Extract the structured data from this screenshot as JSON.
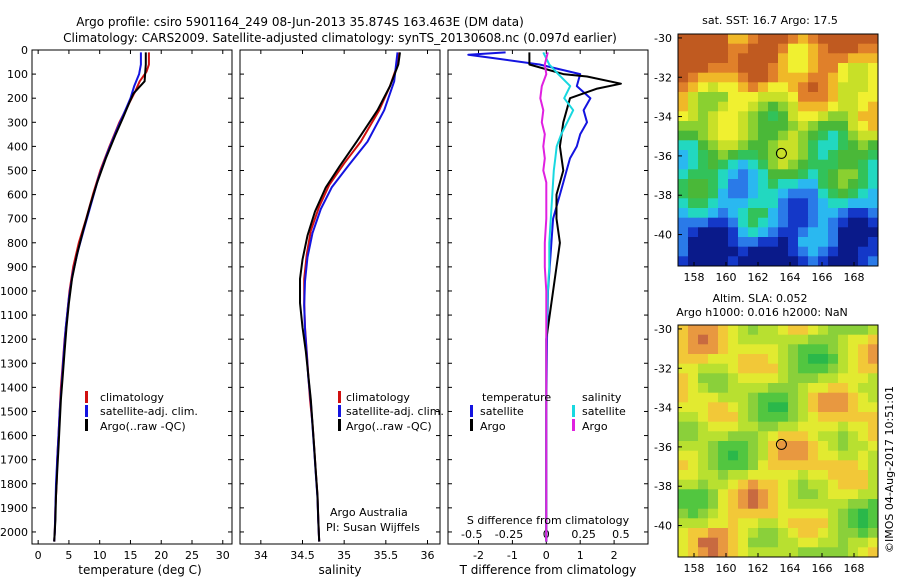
{
  "header": {
    "line1": "Argo profile: csiro 5901164_249 08-Jun-2013 35.874S 163.463E (DM data)",
    "line2": "Climatology: CARS2009. Satellite-adjusted climatology: synTS_20130608.nc (0.097d earlier)"
  },
  "colors": {
    "climatology": "#d01010",
    "satellite": "#1414e0",
    "argo": "#000000",
    "s_satellite": "#18d8e0",
    "s_argo": "#e020e0"
  },
  "chart_data": [
    {
      "type": "line",
      "id": "temperature",
      "xlabel": "temperature (deg C)",
      "xlim": [
        -1,
        31.5
      ],
      "ylim": [
        2050,
        0
      ],
      "xticks": [
        "0",
        "5",
        "10",
        "15",
        "20",
        "25",
        "30"
      ],
      "yticks": [
        "0",
        "100",
        "200",
        "300",
        "400",
        "500",
        "600",
        "700",
        "800",
        "900",
        "1000",
        "1100",
        "1200",
        "1300",
        "1400",
        "1500",
        "1600",
        "1700",
        "1800",
        "1900",
        "2000"
      ],
      "legend": [
        "climatology",
        "satellite-adj. clim.",
        "Argo(..raw -QC)"
      ],
      "series": [
        {
          "name": "climatology",
          "points": [
            [
              18.0,
              10
            ],
            [
              18.0,
              60
            ],
            [
              17.6,
              90
            ],
            [
              16.5,
              130
            ],
            [
              15.8,
              170
            ],
            [
              14.6,
              230
            ],
            [
              13.2,
              300
            ],
            [
              11.6,
              400
            ],
            [
              10.1,
              500
            ],
            [
              8.9,
              600
            ],
            [
              7.8,
              700
            ],
            [
              6.6,
              800
            ],
            [
              5.7,
              900
            ],
            [
              5.1,
              1000
            ],
            [
              4.7,
              1100
            ],
            [
              4.3,
              1200
            ],
            [
              4.0,
              1300
            ],
            [
              3.7,
              1400
            ],
            [
              3.5,
              1500
            ],
            [
              3.3,
              1600
            ],
            [
              3.1,
              1700
            ],
            [
              3.0,
              1800
            ],
            [
              2.8,
              1900
            ],
            [
              2.7,
              2000
            ],
            [
              2.6,
              2040
            ]
          ]
        },
        {
          "name": "satellite-adj. clim.",
          "points": [
            [
              16.7,
              10
            ],
            [
              16.7,
              60
            ],
            [
              16.4,
              100
            ],
            [
              15.6,
              150
            ],
            [
              15.0,
              200
            ],
            [
              14.0,
              260
            ],
            [
              12.8,
              330
            ],
            [
              11.2,
              430
            ],
            [
              9.8,
              530
            ],
            [
              8.7,
              630
            ],
            [
              7.6,
              730
            ],
            [
              6.5,
              830
            ],
            [
              5.6,
              930
            ],
            [
              5.0,
              1030
            ],
            [
              4.5,
              1150
            ],
            [
              4.1,
              1280
            ],
            [
              3.8,
              1400
            ],
            [
              3.5,
              1500
            ],
            [
              3.3,
              1600
            ],
            [
              3.1,
              1700
            ],
            [
              2.9,
              1800
            ],
            [
              2.8,
              1900
            ],
            [
              2.7,
              2000
            ],
            [
              2.6,
              2040
            ]
          ]
        },
        {
          "name": "Argo(..raw -QC)",
          "points": [
            [
              17.5,
              10
            ],
            [
              17.5,
              60
            ],
            [
              17.3,
              130
            ],
            [
              15.5,
              180
            ],
            [
              14.8,
              220
            ],
            [
              13.8,
              280
            ],
            [
              12.6,
              350
            ],
            [
              11.0,
              450
            ],
            [
              9.6,
              550
            ],
            [
              8.4,
              650
            ],
            [
              7.3,
              750
            ],
            [
              6.3,
              850
            ],
            [
              5.5,
              950
            ],
            [
              5.0,
              1050
            ],
            [
              4.6,
              1150
            ],
            [
              4.3,
              1250
            ],
            [
              4.0,
              1350
            ],
            [
              3.7,
              1450
            ],
            [
              3.5,
              1550
            ],
            [
              3.3,
              1650
            ],
            [
              3.1,
              1750
            ],
            [
              2.9,
              1850
            ],
            [
              2.8,
              1950
            ],
            [
              2.6,
              2040
            ]
          ]
        }
      ]
    },
    {
      "type": "line",
      "id": "salinity",
      "xlabel": "salinity",
      "xlim": [
        33.75,
        36.15
      ],
      "ylim": [
        2050,
        0
      ],
      "xticks": [
        "34",
        "34.5",
        "35",
        "35.5",
        "36"
      ],
      "legend": [
        "climatology",
        "satellite-adj. clim.",
        "Argo(..raw -QC)"
      ],
      "annotations": [
        "Argo Australia",
        "PI: Susan Wijffels"
      ],
      "series": [
        {
          "name": "climatology",
          "points": [
            [
              35.66,
              10
            ],
            [
              35.62,
              80
            ],
            [
              35.55,
              150
            ],
            [
              35.42,
              250
            ],
            [
              35.2,
              380
            ],
            [
              35.0,
              470
            ],
            [
              34.82,
              560
            ],
            [
              34.7,
              650
            ],
            [
              34.6,
              750
            ],
            [
              34.55,
              850
            ],
            [
              34.52,
              950
            ],
            [
              34.52,
              1050
            ],
            [
              34.53,
              1150
            ],
            [
              34.55,
              1250
            ],
            [
              34.57,
              1350
            ],
            [
              34.59,
              1450
            ],
            [
              34.62,
              1550
            ],
            [
              34.64,
              1650
            ],
            [
              34.66,
              1750
            ],
            [
              34.68,
              1850
            ],
            [
              34.69,
              1950
            ],
            [
              34.7,
              2040
            ]
          ]
        },
        {
          "name": "satellite-adj. clim.",
          "points": [
            [
              35.64,
              10
            ],
            [
              35.62,
              70
            ],
            [
              35.6,
              130
            ],
            [
              35.48,
              250
            ],
            [
              35.28,
              380
            ],
            [
              35.05,
              480
            ],
            [
              34.85,
              570
            ],
            [
              34.72,
              660
            ],
            [
              34.62,
              760
            ],
            [
              34.56,
              860
            ],
            [
              34.53,
              960
            ],
            [
              34.52,
              1060
            ],
            [
              34.53,
              1160
            ],
            [
              34.55,
              1260
            ],
            [
              34.57,
              1360
            ],
            [
              34.6,
              1460
            ],
            [
              34.62,
              1560
            ],
            [
              34.64,
              1660
            ],
            [
              34.66,
              1760
            ],
            [
              34.68,
              1860
            ],
            [
              34.69,
              1960
            ],
            [
              34.7,
              2040
            ]
          ]
        },
        {
          "name": "Argo(..raw -QC)",
          "points": [
            [
              35.67,
              10
            ],
            [
              35.65,
              60
            ],
            [
              35.55,
              150
            ],
            [
              35.4,
              250
            ],
            [
              35.15,
              380
            ],
            [
              34.95,
              480
            ],
            [
              34.78,
              570
            ],
            [
              34.65,
              670
            ],
            [
              34.56,
              770
            ],
            [
              34.5,
              870
            ],
            [
              34.47,
              950
            ],
            [
              34.47,
              1050
            ],
            [
              34.5,
              1150
            ],
            [
              34.54,
              1250
            ],
            [
              34.57,
              1350
            ],
            [
              34.6,
              1450
            ],
            [
              34.62,
              1550
            ],
            [
              34.64,
              1650
            ],
            [
              34.66,
              1750
            ],
            [
              34.68,
              1850
            ],
            [
              34.69,
              1950
            ],
            [
              34.7,
              2040
            ]
          ]
        }
      ]
    },
    {
      "type": "line",
      "id": "difference",
      "xlabel": "T difference from climatology",
      "xlabel2": "S difference from climatology",
      "xlim": [
        -2.9,
        3.0
      ],
      "ylim": [
        2050,
        0
      ],
      "xticks": [
        "-2",
        "-1",
        "0",
        "1",
        "2"
      ],
      "sticks": [
        "-0.5",
        "-0.25",
        "0",
        "0.25",
        "0.5"
      ],
      "legend_temperature_title": "temperature",
      "legend_salinity_title": "salinity",
      "legend": [
        "satellite",
        "Argo",
        "satellite",
        "Argo"
      ],
      "series": [
        {
          "name": "satellite",
          "points": [
            [
              -1.2,
              10
            ],
            [
              -2.3,
              20
            ],
            [
              -1.5,
              35
            ],
            [
              -0.2,
              60
            ],
            [
              1.0,
              100
            ],
            [
              0.9,
              150
            ],
            [
              1.3,
              200
            ],
            [
              1.1,
              250
            ],
            [
              1.2,
              300
            ],
            [
              1.0,
              350
            ],
            [
              0.9,
              400
            ],
            [
              0.7,
              450
            ],
            [
              0.6,
              500
            ],
            [
              0.5,
              550
            ],
            [
              0.4,
              600
            ],
            [
              0.3,
              650
            ],
            [
              0.2,
              700
            ],
            [
              0.15,
              800
            ],
            [
              0.1,
              900
            ],
            [
              0.05,
              1000
            ],
            [
              0.02,
              1200
            ],
            [
              0.0,
              1500
            ],
            [
              0.0,
              2040
            ]
          ]
        },
        {
          "name": "Argo",
          "points": [
            [
              -0.5,
              10
            ],
            [
              -0.5,
              60
            ],
            [
              0.5,
              100
            ],
            [
              1.2,
              110
            ],
            [
              2.2,
              140
            ],
            [
              1.5,
              160
            ],
            [
              0.7,
              200
            ],
            [
              0.5,
              300
            ],
            [
              0.4,
              400
            ],
            [
              0.5,
              500
            ],
            [
              0.3,
              600
            ],
            [
              0.3,
              700
            ],
            [
              0.4,
              800
            ],
            [
              0.3,
              900
            ],
            [
              0.2,
              1000
            ],
            [
              0.0,
              1200
            ],
            [
              0.0,
              1500
            ],
            [
              0.0,
              2040
            ]
          ]
        },
        {
          "name": "S satellite",
          "points": [
            [
              -0.02,
              10
            ],
            [
              0.02,
              60
            ],
            [
              0.08,
              100
            ],
            [
              0.16,
              150
            ],
            [
              0.12,
              200
            ],
            [
              0.18,
              250
            ],
            [
              0.14,
              300
            ],
            [
              0.1,
              350
            ],
            [
              0.07,
              400
            ],
            [
              0.06,
              450
            ],
            [
              0.05,
              500
            ],
            [
              0.04,
              600
            ],
            [
              0.03,
              700
            ],
            [
              0.02,
              800
            ],
            [
              0.02,
              900
            ],
            [
              0.01,
              1000
            ],
            [
              0.0,
              1200
            ],
            [
              0.0,
              1500
            ],
            [
              0.0,
              2040
            ]
          ]
        },
        {
          "name": "S Argo",
          "points": [
            [
              0.01,
              10
            ],
            [
              -0.01,
              60
            ],
            [
              0.0,
              100
            ],
            [
              -0.03,
              150
            ],
            [
              -0.04,
              200
            ],
            [
              -0.02,
              250
            ],
            [
              -0.03,
              300
            ],
            [
              -0.01,
              350
            ],
            [
              -0.02,
              400
            ],
            [
              -0.01,
              450
            ],
            [
              -0.02,
              500
            ],
            [
              0.0,
              550
            ],
            [
              0.0,
              600
            ],
            [
              0.0,
              700
            ],
            [
              -0.01,
              800
            ],
            [
              -0.01,
              900
            ],
            [
              0.0,
              1000
            ],
            [
              0.0,
              1200
            ],
            [
              0.0,
              1500
            ],
            [
              0.0,
              2040
            ]
          ]
        }
      ]
    },
    {
      "type": "heatmap",
      "id": "sst-map",
      "title": "sat. SST: 16.7  Argo: 17.5",
      "xticks": [
        "158",
        "160",
        "162",
        "164",
        "166",
        "168"
      ],
      "yticks": [
        "-30",
        "-32",
        "-34",
        "-36",
        "-38",
        "-40"
      ],
      "marker": {
        "lon": 163.463,
        "lat": -35.874
      }
    },
    {
      "type": "heatmap",
      "id": "sla-map",
      "title": "Altim. SLA: 0.052",
      "title2": "Argo h1000: 0.016  h2000: NaN",
      "xticks": [
        "158",
        "160",
        "162",
        "164",
        "166",
        "168"
      ],
      "yticks": [
        "-30",
        "-32",
        "-34",
        "-36",
        "-38",
        "-40"
      ],
      "marker": {
        "lon": 163.463,
        "lat": -35.874
      }
    }
  ],
  "footer": {
    "credit": "©IMOS 04-Aug-2017 10:51:01"
  }
}
